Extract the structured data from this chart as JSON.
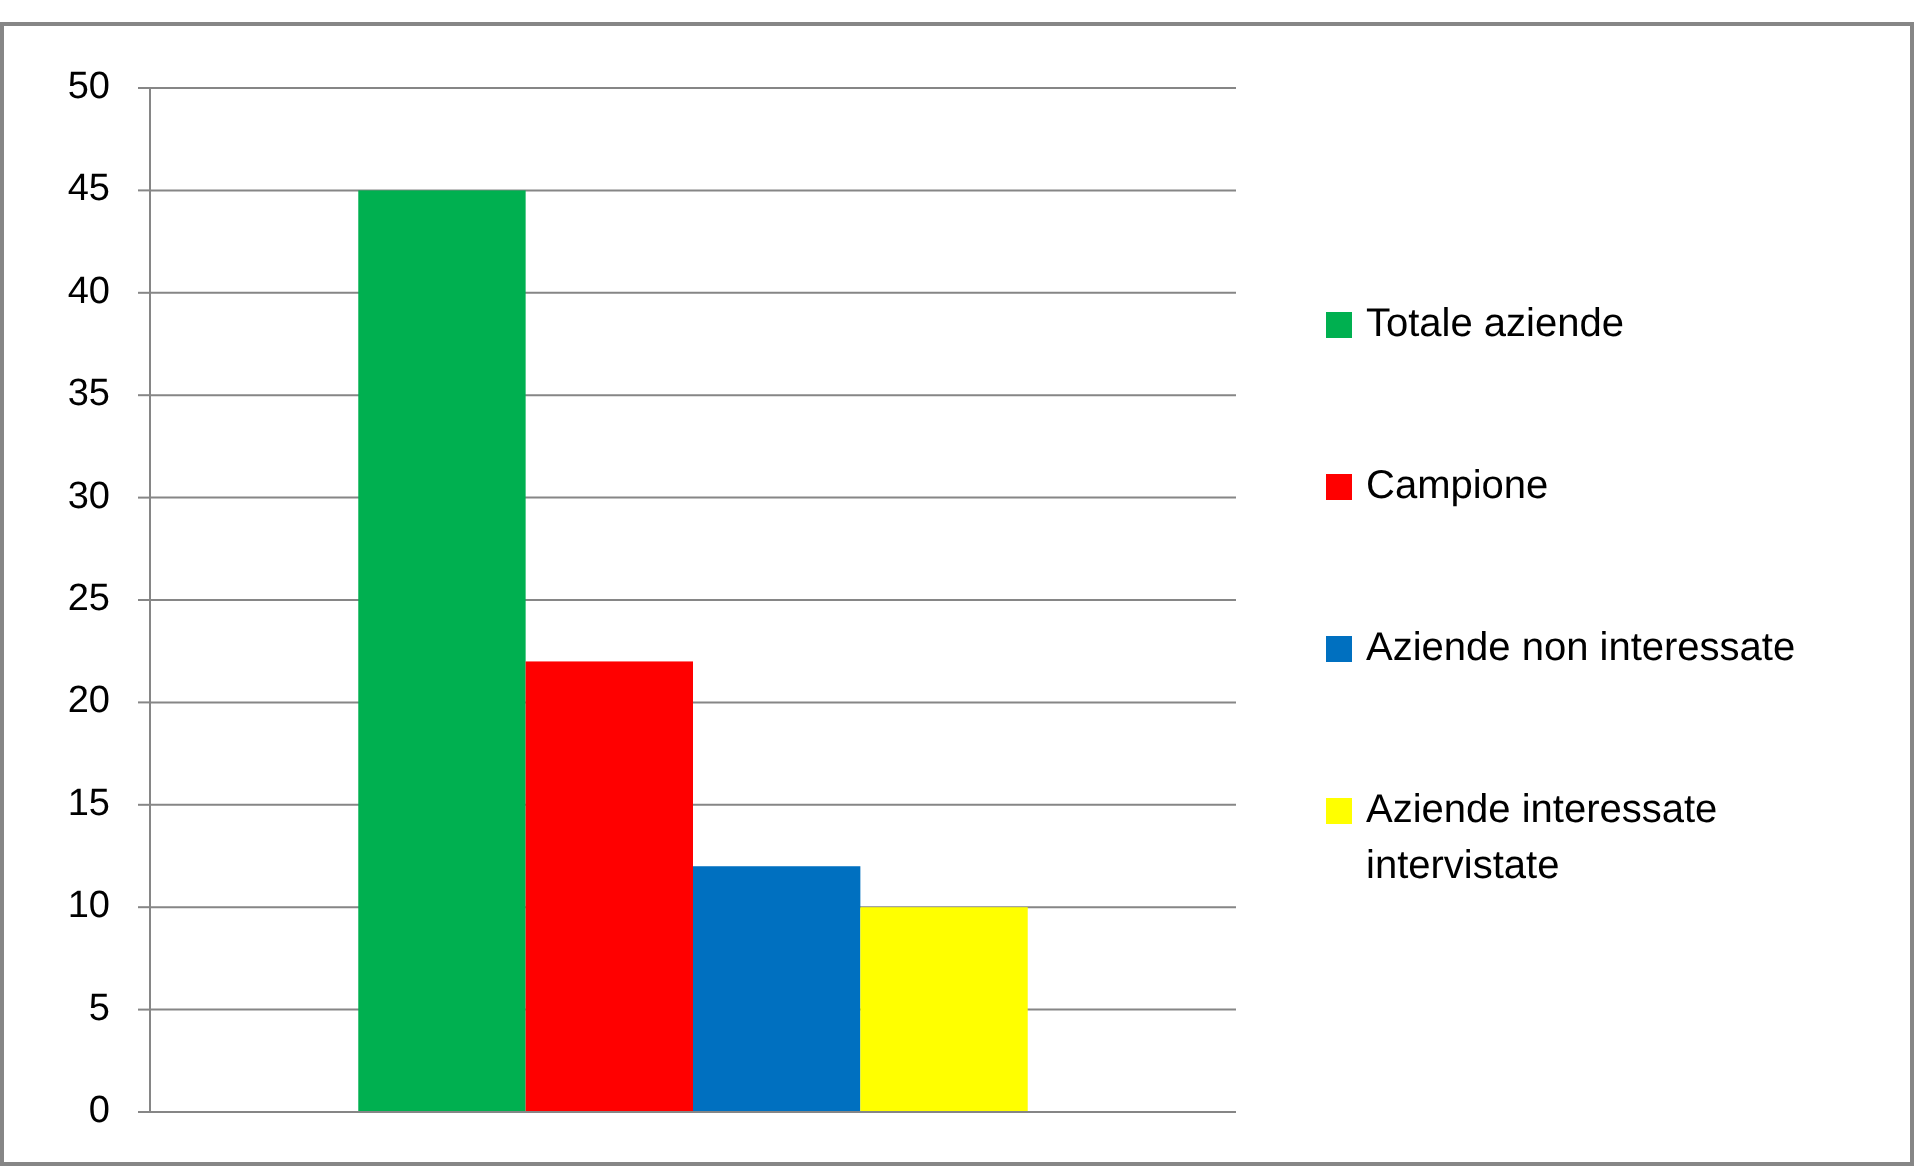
{
  "chart_data": {
    "type": "bar",
    "categories": [
      null
    ],
    "series": [
      {
        "name": "Totale aziende",
        "color": "#00b050",
        "values": [
          45
        ]
      },
      {
        "name": "Campione",
        "color": "#ff0000",
        "values": [
          22
        ]
      },
      {
        "name": "Aziende non interessate",
        "color": "#0070c0",
        "values": [
          12
        ]
      },
      {
        "name": "Aziende interessate intervistate",
        "color": "#ffff00",
        "values": [
          10
        ]
      }
    ],
    "ylim": [
      0,
      50
    ],
    "yticks": [
      0,
      5,
      10,
      15,
      20,
      25,
      30,
      35,
      40,
      45,
      50
    ],
    "grid": "y",
    "legend": "right"
  }
}
